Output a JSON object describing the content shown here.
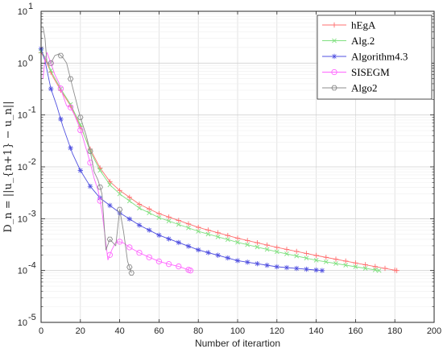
{
  "chart_data": {
    "type": "line",
    "xlabel": "Number of iterartion",
    "ylabel": "D_n = ||u_{n+1} − u_n||",
    "xlim": [
      0,
      200
    ],
    "ylim": [
      1e-05,
      10
    ],
    "yscale": "log",
    "grid": true,
    "legend_position": "top-right",
    "x_ticks": [
      0,
      20,
      40,
      60,
      80,
      100,
      120,
      140,
      160,
      180,
      200
    ],
    "y_ticks": [
      1e-05,
      0.0001,
      0.001,
      0.01,
      0.1,
      1,
      10
    ],
    "y_tick_labels": [
      {
        "base": "10",
        "exp": "-5"
      },
      {
        "base": "10",
        "exp": "-4"
      },
      {
        "base": "10",
        "exp": "-3"
      },
      {
        "base": "10",
        "exp": "-2"
      },
      {
        "base": "10",
        "exp": "-1"
      },
      {
        "base": "10",
        "exp": "0"
      },
      {
        "base": "10",
        "exp": "1"
      }
    ],
    "series": [
      {
        "name": "hEgA",
        "color": "#ff6f6f",
        "marker": "plus",
        "points": [
          [
            0,
            1.6
          ],
          [
            2,
            1.2
          ],
          [
            6,
            0.55
          ],
          [
            10,
            0.3
          ],
          [
            15,
            0.15
          ],
          [
            20,
            0.06
          ],
          [
            25,
            0.022
          ],
          [
            30,
            0.0095
          ],
          [
            35,
            0.0052
          ],
          [
            40,
            0.0035
          ],
          [
            50,
            0.0019
          ],
          [
            60,
            0.00125
          ],
          [
            80,
            0.00068
          ],
          [
            100,
            0.00042
          ],
          [
            120,
            0.00028
          ],
          [
            140,
            0.000195
          ],
          [
            160,
            0.00014
          ],
          [
            181,
            0.0001
          ]
        ]
      },
      {
        "name": "Alg.2",
        "color": "#7fe07f",
        "marker": "x",
        "points": [
          [
            0,
            1.7
          ],
          [
            2,
            1.3
          ],
          [
            6,
            0.6
          ],
          [
            10,
            0.32
          ],
          [
            15,
            0.16
          ],
          [
            20,
            0.065
          ],
          [
            25,
            0.02
          ],
          [
            30,
            0.0085
          ],
          [
            35,
            0.0045
          ],
          [
            40,
            0.003
          ],
          [
            50,
            0.0016
          ],
          [
            60,
            0.00105
          ],
          [
            80,
            0.00057
          ],
          [
            100,
            0.00035
          ],
          [
            120,
            0.00023
          ],
          [
            140,
            0.000158
          ],
          [
            160,
            0.000118
          ],
          [
            172,
            0.0001
          ]
        ]
      },
      {
        "name": "Algorithm4.3",
        "color": "#5050e0",
        "marker": "star",
        "points": [
          [
            0,
            1.9
          ],
          [
            2,
            1.1
          ],
          [
            5,
            0.32
          ],
          [
            8,
            0.15
          ],
          [
            11,
            0.062
          ],
          [
            16,
            0.018
          ],
          [
            20,
            0.0085
          ],
          [
            25,
            0.0042
          ],
          [
            30,
            0.0025
          ],
          [
            35,
            0.0018
          ],
          [
            40,
            0.0013
          ],
          [
            50,
            0.00075
          ],
          [
            60,
            0.00048
          ],
          [
            80,
            0.00025
          ],
          [
            100,
            0.000155
          ],
          [
            120,
            0.000118
          ],
          [
            143,
            0.0001
          ]
        ]
      },
      {
        "name": "SISEGM",
        "color": "#ff66ff",
        "marker": "circle",
        "points": [
          [
            1,
            0.5
          ],
          [
            2,
            1.2
          ],
          [
            3,
            1.6
          ],
          [
            5,
            1.0
          ],
          [
            7,
            0.6
          ],
          [
            9,
            0.42
          ],
          [
            11,
            0.25
          ],
          [
            13,
            0.15
          ],
          [
            15,
            0.14
          ],
          [
            17,
            0.1
          ],
          [
            19,
            0.065
          ],
          [
            21,
            0.04
          ],
          [
            23,
            0.022
          ],
          [
            25,
            0.012
          ],
          [
            27,
            0.006
          ],
          [
            29,
            0.0035
          ],
          [
            31,
            0.0014
          ],
          [
            34,
            0.00016
          ],
          [
            36,
            0.00025
          ],
          [
            38,
            0.00035
          ],
          [
            40,
            0.00036
          ],
          [
            42,
            0.00034
          ],
          [
            45,
            0.00028
          ],
          [
            50,
            0.00022
          ],
          [
            55,
            0.00018
          ],
          [
            60,
            0.00015
          ],
          [
            66,
            0.00013
          ],
          [
            70,
            0.00012
          ],
          [
            76,
            0.0001
          ]
        ]
      },
      {
        "name": "Algo2",
        "color": "#8c8c8c",
        "marker": "hexagon",
        "points": [
          [
            1,
            5
          ],
          [
            2,
            3
          ],
          [
            3,
            1.0
          ],
          [
            5,
            1.0
          ],
          [
            7,
            1.4
          ],
          [
            9,
            1.5
          ],
          [
            11,
            1.3
          ],
          [
            13,
            1.0
          ],
          [
            16,
            0.35
          ],
          [
            20,
            0.09
          ],
          [
            23,
            0.04
          ],
          [
            25,
            0.02
          ],
          [
            27,
            0.008
          ],
          [
            29,
            0.0055
          ],
          [
            31,
            0.003
          ],
          [
            33,
            0.00025
          ],
          [
            35,
            0.0004
          ],
          [
            38,
            0.0003
          ],
          [
            40,
            0.0015
          ],
          [
            42,
            0.00055
          ],
          [
            44,
            0.00015
          ],
          [
            46,
            9e-05
          ]
        ]
      }
    ]
  }
}
